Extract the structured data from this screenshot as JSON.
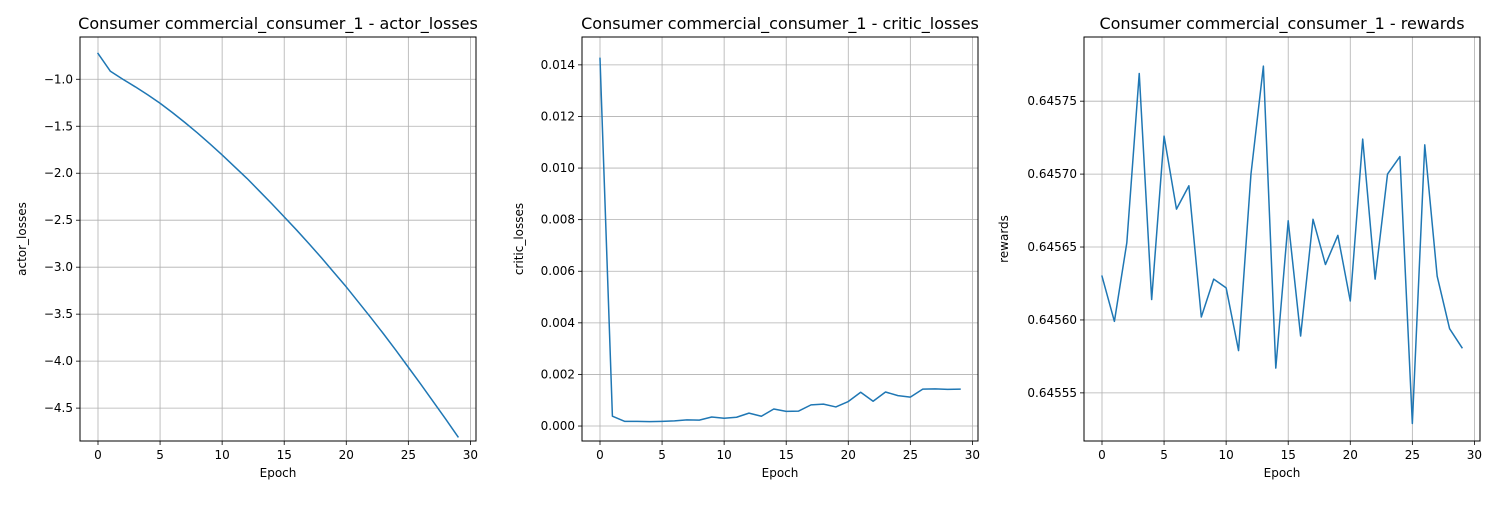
{
  "chart_data": [
    {
      "type": "line",
      "title": "Consumer commercial_consumer_1 - actor_losses",
      "xlabel": "Epoch",
      "ylabel": "actor_losses",
      "grid": true,
      "xlim": [
        -1.45,
        30.45
      ],
      "ylim": [
        -4.85,
        -0.55
      ],
      "xticks": [
        0,
        5,
        10,
        15,
        20,
        25,
        30
      ],
      "xtick_labels": [
        "0",
        "5",
        "10",
        "15",
        "20",
        "25",
        "30"
      ],
      "yticks": [
        -1.0,
        -1.5,
        -2.0,
        -2.5,
        -3.0,
        -3.5,
        -4.0,
        -4.5
      ],
      "ytick_labels": [
        "−1.0",
        "−1.5",
        "−2.0",
        "−2.5",
        "−3.0",
        "−3.5",
        "−4.0",
        "−4.5"
      ],
      "x": [
        0,
        1,
        2,
        3,
        4,
        5,
        6,
        7,
        8,
        9,
        10,
        11,
        12,
        13,
        14,
        15,
        16,
        17,
        18,
        19,
        20,
        21,
        22,
        23,
        24,
        25,
        26,
        27,
        28,
        29
      ],
      "values": [
        -0.725,
        -0.915,
        -1.0,
        -1.08,
        -1.165,
        -1.255,
        -1.355,
        -1.46,
        -1.57,
        -1.685,
        -1.805,
        -1.93,
        -2.055,
        -2.19,
        -2.325,
        -2.465,
        -2.605,
        -2.75,
        -2.9,
        -3.055,
        -3.21,
        -3.375,
        -3.54,
        -3.71,
        -3.885,
        -4.065,
        -4.245,
        -4.43,
        -4.615,
        -4.805
      ]
    },
    {
      "type": "line",
      "title": "Consumer commercial_consumer_1 - critic_losses",
      "xlabel": "Epoch",
      "ylabel": "critic_losses",
      "grid": true,
      "xlim": [
        -1.45,
        30.45
      ],
      "ylim": [
        -0.00058,
        0.01508
      ],
      "xticks": [
        0,
        5,
        10,
        15,
        20,
        25,
        30
      ],
      "xtick_labels": [
        "0",
        "5",
        "10",
        "15",
        "20",
        "25",
        "30"
      ],
      "yticks": [
        0.0,
        0.002,
        0.004,
        0.006,
        0.008,
        0.01,
        0.012,
        0.014
      ],
      "ytick_labels": [
        "0.000",
        "0.002",
        "0.004",
        "0.006",
        "0.008",
        "0.010",
        "0.012",
        "0.014"
      ],
      "x": [
        0,
        1,
        2,
        3,
        4,
        5,
        6,
        7,
        8,
        9,
        10,
        11,
        12,
        13,
        14,
        15,
        16,
        17,
        18,
        19,
        20,
        21,
        22,
        23,
        24,
        25,
        26,
        27,
        28,
        29
      ],
      "values": [
        0.01425,
        0.00038,
        0.00018,
        0.00018,
        0.00017,
        0.00018,
        0.0002,
        0.00024,
        0.00023,
        0.00035,
        0.0003,
        0.00034,
        0.0005,
        0.00038,
        0.00066,
        0.00057,
        0.00058,
        0.00082,
        0.00085,
        0.00074,
        0.00095,
        0.00131,
        0.00096,
        0.00132,
        0.00118,
        0.00112,
        0.00143,
        0.00144,
        0.00142,
        0.00143
      ]
    },
    {
      "type": "line",
      "title": "Consumer commercial_consumer_1 - rewards",
      "xlabel": "Epoch",
      "ylabel": "rewards",
      "grid": true,
      "xlim": [
        -1.45,
        30.45
      ],
      "ylim": [
        0.645517,
        0.645794
      ],
      "xticks": [
        0,
        5,
        10,
        15,
        20,
        25,
        30
      ],
      "xtick_labels": [
        "0",
        "5",
        "10",
        "15",
        "20",
        "25",
        "30"
      ],
      "yticks": [
        0.64555,
        0.6456,
        0.64565,
        0.6457,
        0.64575
      ],
      "ytick_labels": [
        "0.64555",
        "0.64560",
        "0.64565",
        "0.64570",
        "0.64575"
      ],
      "x": [
        0,
        1,
        2,
        3,
        4,
        5,
        6,
        7,
        8,
        9,
        10,
        11,
        12,
        13,
        14,
        15,
        16,
        17,
        18,
        19,
        20,
        21,
        22,
        23,
        24,
        25,
        26,
        27,
        28,
        29
      ],
      "values": [
        0.64563,
        0.645599,
        0.645653,
        0.645769,
        0.645614,
        0.645726,
        0.645676,
        0.645692,
        0.645602,
        0.645628,
        0.645622,
        0.645579,
        0.6457,
        0.645774,
        0.645567,
        0.645668,
        0.645589,
        0.645669,
        0.645638,
        0.645658,
        0.645613,
        0.645724,
        0.645628,
        0.6457,
        0.645712,
        0.645529,
        0.64572,
        0.64563,
        0.645594,
        0.645581
      ]
    }
  ]
}
